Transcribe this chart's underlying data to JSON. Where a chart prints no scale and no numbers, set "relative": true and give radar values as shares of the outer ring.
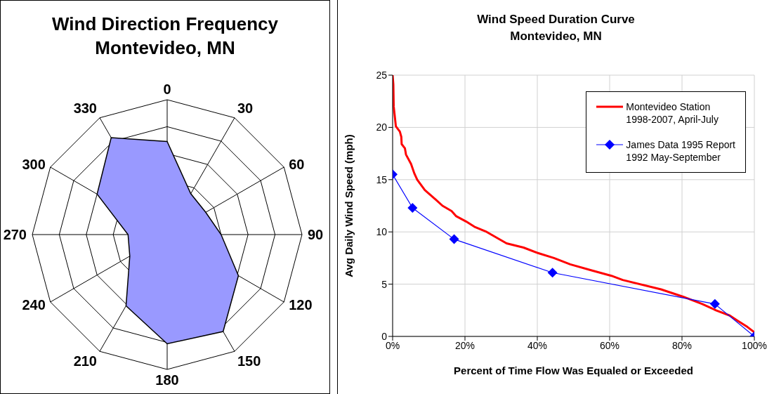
{
  "chart_data": [
    {
      "type": "radar",
      "title": "Wind Direction Frequency",
      "subtitle": "Montevideo, MN",
      "relative": true,
      "categories": [
        "0",
        "30",
        "60",
        "90",
        "120",
        "150",
        "180",
        "210",
        "240",
        "270",
        "300",
        "330"
      ],
      "grid": true,
      "series": [
        {
          "color": "#9999ff",
          "values": [
            0.69,
            0.35,
            0.33,
            0.4,
            0.61,
            0.83,
            0.81,
            0.61,
            0.32,
            0.29,
            0.6,
            0.83
          ]
        }
      ]
    },
    {
      "type": "line",
      "title": "Wind Speed Duration Curve",
      "subtitle": "Montevideo, MN",
      "xlabel": "Percent of Time Flow Was Equaled or Exceeded",
      "ylabel": "Avg Daily Wind Speed (mph)",
      "xlim": [
        0,
        100
      ],
      "xticks": [
        {
          "value": 0,
          "label": "0%"
        },
        {
          "value": 20,
          "label": "20%"
        },
        {
          "value": 40,
          "label": "40%"
        },
        {
          "value": 60,
          "label": "60%"
        },
        {
          "value": 80,
          "label": "80%"
        },
        {
          "value": 100,
          "label": "100%"
        }
      ],
      "ylim": [
        0,
        25
      ],
      "yticks": [
        0,
        5,
        10,
        15,
        20,
        25
      ],
      "grid": true,
      "legend": "top right",
      "series": [
        {
          "name": "Montevideo Station\n1998-2007, April-July",
          "color": "#ff0000",
          "marker": "none",
          "x": [
            0,
            0.2,
            0.3,
            0.9,
            2.0,
            2.4,
            2.5,
            3.4,
            3.7,
            5.1,
            6.0,
            6.8,
            8.9,
            11.9,
            13.8,
            16.3,
            17.6,
            20.3,
            22.6,
            26.0,
            31.5,
            36.2,
            40.0,
            44.6,
            49.1,
            55.2,
            60.5,
            63.6,
            74.2,
            80.3,
            85.6,
            89.4,
            93.2,
            95.4,
            98.1,
            100
          ],
          "values": [
            25,
            24.1,
            22,
            20.1,
            19.6,
            19.1,
            18.4,
            18.0,
            17.4,
            16.5,
            15.6,
            15.0,
            14.0,
            13.1,
            12.5,
            12.0,
            11.5,
            11.0,
            10.5,
            10.0,
            8.9,
            8.5,
            8.0,
            7.5,
            6.9,
            6.3,
            5.8,
            5.4,
            4.5,
            3.8,
            3.1,
            2.5,
            2.0,
            1.5,
            0.9,
            0.4
          ]
        },
        {
          "name": "James Data 1995 Report\n1992 May-September",
          "color": "#0000ff",
          "marker": "diamond",
          "x": [
            0,
            5.5,
            17.0,
            44.2,
            89.1,
            100
          ],
          "values": [
            15.5,
            12.3,
            9.3,
            6.1,
            3.1,
            0
          ]
        }
      ]
    }
  ]
}
